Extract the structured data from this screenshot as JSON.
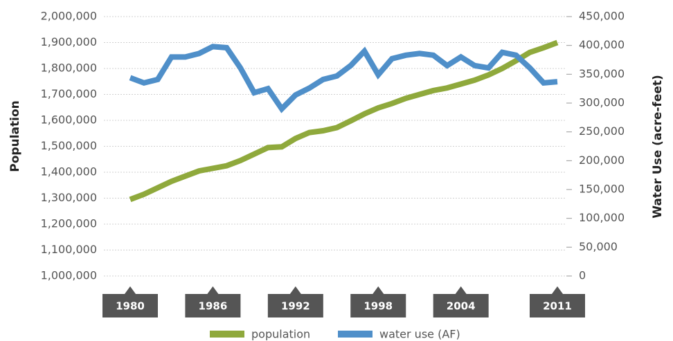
{
  "chart_data": {
    "type": "line",
    "categories": [
      "1980",
      null,
      null,
      null,
      null,
      null,
      "1986",
      null,
      null,
      null,
      null,
      null,
      "1992",
      null,
      null,
      null,
      null,
      null,
      "1998",
      null,
      null,
      null,
      null,
      null,
      "2004",
      null,
      null,
      null,
      null,
      null,
      null,
      "2011"
    ],
    "series": [
      {
        "name": "population",
        "color": "#8fa93c",
        "axis": "y",
        "values": [
          1295000,
          1315000,
          1340000,
          1365000,
          1385000,
          1405000,
          1415000,
          1425000,
          1445000,
          1470000,
          1495000,
          1498000,
          1530000,
          1553000,
          1560000,
          1572000,
          1598000,
          1625000,
          1648000,
          1665000,
          1685000,
          1700000,
          1715000,
          1725000,
          1740000,
          1755000,
          1775000,
          1800000,
          1830000,
          1862000,
          1880000,
          1900000
        ]
      },
      {
        "name": "water use (AF)",
        "color": "#4f8fc9",
        "axis": "y2",
        "values": [
          344000,
          335000,
          341000,
          380000,
          380000,
          386000,
          398000,
          396000,
          361000,
          318000,
          325000,
          290000,
          314000,
          326000,
          341000,
          347000,
          365000,
          390000,
          349000,
          377000,
          383000,
          386000,
          383000,
          365000,
          380000,
          365000,
          361000,
          388000,
          383000,
          361000,
          335000,
          337000
        ]
      }
    ],
    "ylabel": "Population",
    "y2label": "Water Use (acre-feet)",
    "ylim": [
      1000000,
      2000000
    ],
    "yticks": [
      {
        "value": 1000000,
        "label": "1,000,000"
      },
      {
        "value": 1100000,
        "label": "1,100,000"
      },
      {
        "value": 1200000,
        "label": "1,200,000"
      },
      {
        "value": 1300000,
        "label": "1,300,000"
      },
      {
        "value": 1400000,
        "label": "1,400,000"
      },
      {
        "value": 1500000,
        "label": "1,500,000"
      },
      {
        "value": 1600000,
        "label": "1,600,000"
      },
      {
        "value": 1700000,
        "label": "1,700,000"
      },
      {
        "value": 1800000,
        "label": "1,800,000"
      },
      {
        "value": 1900000,
        "label": "1,900,000"
      },
      {
        "value": 2000000,
        "label": "2,000,000"
      }
    ],
    "y2lim": [
      0,
      450000
    ],
    "y2ticks": [
      0,
      {
        "value": 50000,
        "label": "50,000"
      },
      {
        "value": 100000,
        "label": "100,000"
      },
      {
        "value": 150000,
        "label": "150,000"
      },
      {
        "value": 200000,
        "label": "200,000"
      },
      {
        "value": 250000,
        "label": "250,000"
      },
      {
        "value": 300000,
        "label": "300,000"
      },
      {
        "value": 350000,
        "label": "350,000"
      },
      {
        "value": 400000,
        "label": "400,000"
      },
      {
        "value": 450000,
        "label": "450,000"
      }
    ],
    "grid": true,
    "legend": "bottom"
  }
}
